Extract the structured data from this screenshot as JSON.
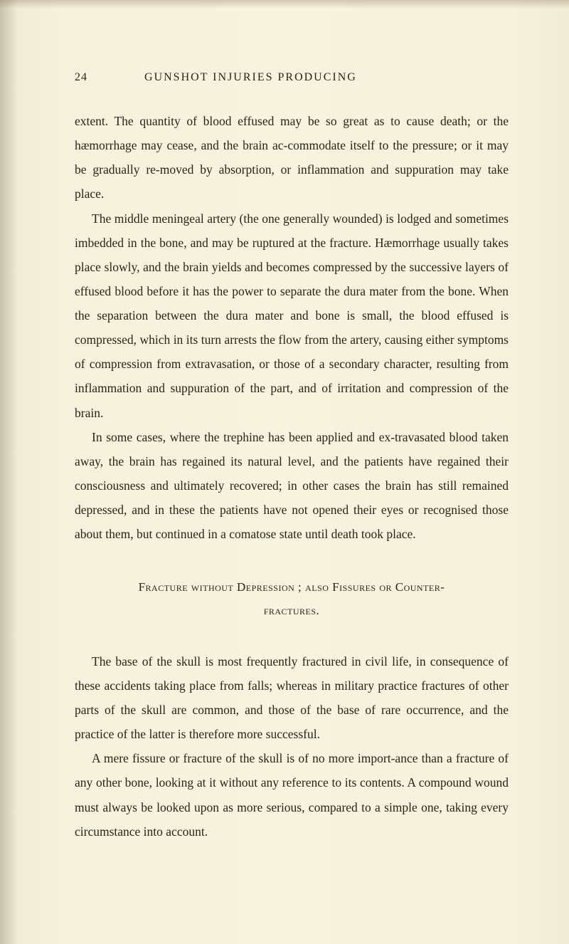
{
  "page": {
    "number": "24",
    "runningTitle": "GUNSHOT INJURIES PRODUCING",
    "paragraphs": [
      "extent. The quantity of blood effused may be so great as to cause death; or the hæmorrhage may cease, and the brain ac-commodate itself to the pressure; or it may be gradually re-moved by absorption, or inflammation and suppuration may take place.",
      "The middle meningeal artery (the one generally wounded) is lodged and sometimes imbedded in the bone, and may be ruptured at the fracture. Hæmorrhage usually takes place slowly, and the brain yields and becomes compressed by the successive layers of effused blood before it has the power to separate the dura mater from the bone. When the separation between the dura mater and bone is small, the blood effused is compressed, which in its turn arrests the flow from the artery, causing either symptoms of compression from extravasation, or those of a secondary character, resulting from inflammation and suppuration of the part, and of irritation and compression of the brain.",
      "In some cases, where the trephine has been applied and ex-travasated blood taken away, the brain has regained its natural level, and the patients have regained their consciousness and ultimately recovered; in other cases the brain has still remained depressed, and in these the patients have not opened their eyes or recognised those about them, but continued in a comatose state until death took place."
    ],
    "sectionHeading": {
      "line1": "Fracture without Depression ; also Fissures or Counter-",
      "line2": "fractures."
    },
    "paragraphs2": [
      "The base of the skull is most frequently fractured in civil life, in consequence of these accidents taking place from falls; whereas in military practice fractures of other parts of the skull are common, and those of the base of rare occurrence, and the practice of the latter is therefore more successful.",
      "A mere fissure or fracture of the skull is of no more import-ance than a fracture of any other bone, looking at it without any reference to its contents. A compound wound must always be looked upon as more serious, compared to a simple one, taking every circumstance into account."
    ]
  },
  "colors": {
    "text": "#2a2418",
    "background": "#f5f1dc"
  }
}
